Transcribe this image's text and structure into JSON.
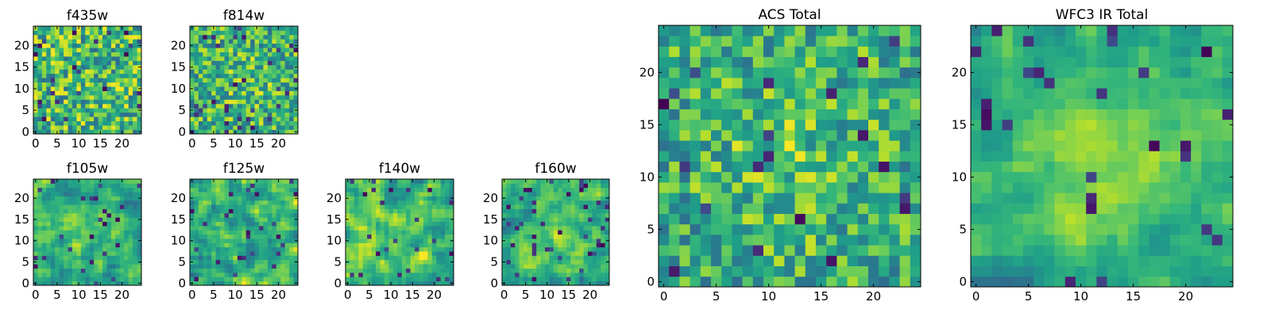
{
  "chart_data": [
    {
      "type": "heatmap",
      "title": "f435w",
      "xticks": [
        "0",
        "5",
        "10",
        "15",
        "20"
      ],
      "yticks": [
        "0",
        "5",
        "10",
        "15",
        "20"
      ],
      "xlim": [
        -0.5,
        24.5
      ],
      "ylim": [
        -0.5,
        24.5
      ],
      "origin": "lower",
      "colormap": "viridis",
      "grid": false,
      "pattern": "noise",
      "seed": 11
    },
    {
      "type": "heatmap",
      "title": "f814w",
      "xticks": [
        "0",
        "5",
        "10",
        "15",
        "20"
      ],
      "yticks": [
        "0",
        "5",
        "10",
        "15",
        "20"
      ],
      "xlim": [
        -0.5,
        24.5
      ],
      "ylim": [
        -0.5,
        24.5
      ],
      "origin": "lower",
      "colormap": "viridis",
      "grid": false,
      "pattern": "noise-faint-center",
      "seed": 23
    },
    {
      "type": "heatmap",
      "title": "f105w",
      "xticks": [
        "0",
        "5",
        "10",
        "15",
        "20"
      ],
      "yticks": [
        "0",
        "5",
        "10",
        "15",
        "20"
      ],
      "xlim": [
        -0.5,
        24.5
      ],
      "ylim": [
        -0.5,
        24.5
      ],
      "origin": "lower",
      "colormap": "viridis",
      "grid": false,
      "pattern": "smooth-center",
      "seed": 37
    },
    {
      "type": "heatmap",
      "title": "f125w",
      "xticks": [
        "0",
        "5",
        "10",
        "15",
        "20"
      ],
      "yticks": [
        "0",
        "5",
        "10",
        "15",
        "20"
      ],
      "xlim": [
        -0.5,
        24.5
      ],
      "ylim": [
        -0.5,
        24.5
      ],
      "origin": "lower",
      "colormap": "viridis",
      "grid": false,
      "pattern": "smooth",
      "seed": 41
    },
    {
      "type": "heatmap",
      "title": "f140w",
      "xticks": [
        "0",
        "5",
        "10",
        "15",
        "20"
      ],
      "yticks": [
        "0",
        "5",
        "10",
        "15",
        "20"
      ],
      "xlim": [
        -0.5,
        24.5
      ],
      "ylim": [
        -0.5,
        24.5
      ],
      "origin": "lower",
      "colormap": "viridis",
      "grid": false,
      "pattern": "smooth",
      "seed": 53
    },
    {
      "type": "heatmap",
      "title": "f160w",
      "xticks": [
        "0",
        "5",
        "10",
        "15",
        "20"
      ],
      "yticks": [
        "0",
        "5",
        "10",
        "15",
        "20"
      ],
      "xlim": [
        -0.5,
        24.5
      ],
      "ylim": [
        -0.5,
        24.5
      ],
      "origin": "lower",
      "colormap": "viridis",
      "grid": false,
      "pattern": "smooth-center",
      "seed": 67
    },
    {
      "type": "heatmap",
      "title": "ACS Total",
      "xticks": [
        "0",
        "5",
        "10",
        "15",
        "20"
      ],
      "yticks": [
        "0",
        "5",
        "10",
        "15",
        "20"
      ],
      "xlim": [
        -0.5,
        24.5
      ],
      "ylim": [
        -0.5,
        24.5
      ],
      "origin": "lower",
      "colormap": "viridis",
      "grid": false,
      "pattern": "noise-center",
      "seed": 79
    },
    {
      "type": "heatmap",
      "title": "WFC3 IR Total",
      "xticks": [
        "0",
        "5",
        "10",
        "15",
        "20"
      ],
      "yticks": [
        "0",
        "5",
        "10",
        "15",
        "20"
      ],
      "xlim": [
        -0.5,
        24.5
      ],
      "ylim": [
        -0.5,
        24.5
      ],
      "origin": "lower",
      "colormap": "viridis",
      "grid": false,
      "pattern": "smooth-center-strong",
      "seed": 97
    }
  ]
}
